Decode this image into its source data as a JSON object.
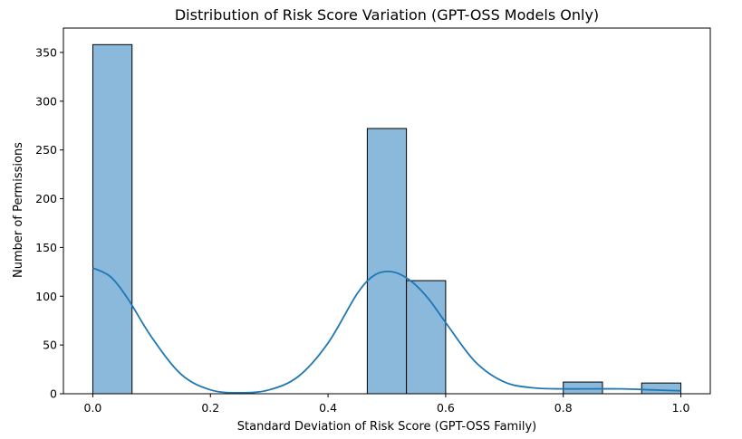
{
  "chart_data": {
    "type": "bar",
    "subtype": "histogram-with-kde",
    "title": "Distribution of Risk Score Variation (GPT-OSS Models Only)",
    "xlabel": "Standard Deviation of Risk Score (GPT-OSS Family)",
    "ylabel": "Number of Permissions",
    "xlim": [
      -0.05,
      1.05
    ],
    "ylim": [
      0,
      375
    ],
    "x_ticks": [
      0.0,
      0.2,
      0.4,
      0.6,
      0.8,
      1.0
    ],
    "x_tick_labels": [
      "0.0",
      "0.2",
      "0.4",
      "0.6",
      "0.8",
      "1.0"
    ],
    "y_ticks": [
      0,
      50,
      100,
      150,
      200,
      250,
      300,
      350
    ],
    "y_tick_labels": [
      "0",
      "50",
      "100",
      "150",
      "200",
      "250",
      "300",
      "350"
    ],
    "bins": [
      {
        "start": 0.0,
        "end": 0.0667,
        "count": 358
      },
      {
        "start": 0.4667,
        "end": 0.5333,
        "count": 272
      },
      {
        "start": 0.5333,
        "end": 0.6,
        "count": 116
      },
      {
        "start": 0.8,
        "end": 0.8667,
        "count": 12
      },
      {
        "start": 0.9333,
        "end": 1.0,
        "count": 11
      }
    ],
    "kde": {
      "x": [
        0.0,
        0.03,
        0.06,
        0.1,
        0.15,
        0.2,
        0.25,
        0.3,
        0.35,
        0.4,
        0.45,
        0.48,
        0.51,
        0.54,
        0.57,
        0.6,
        0.65,
        0.7,
        0.75,
        0.8,
        0.85,
        0.9,
        0.95,
        1.0
      ],
      "y": [
        129,
        120,
        97,
        58,
        20,
        4,
        1,
        4,
        18,
        52,
        103,
        122,
        125,
        116,
        98,
        73,
        33,
        12,
        6,
        5,
        5,
        5,
        4,
        3
      ]
    },
    "grid": false,
    "colors": {
      "bar_fill": "#8bb9dc",
      "bar_edge": "#000000",
      "kde_line": "#1f77b4",
      "axis": "#000000"
    }
  }
}
